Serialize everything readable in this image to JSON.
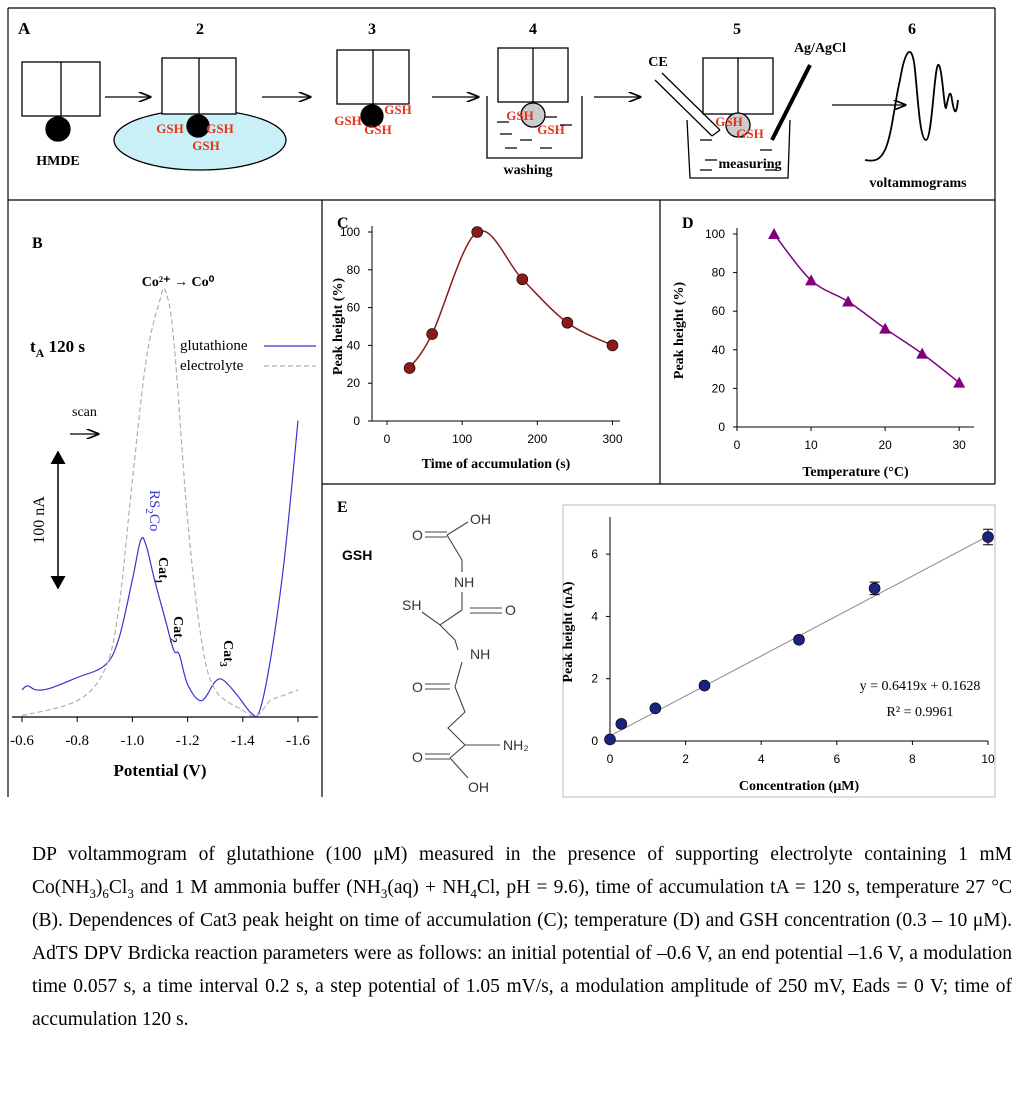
{
  "panel_a": {
    "label": "A",
    "steps": [
      "2",
      "3",
      "4",
      "5",
      "6"
    ],
    "hmde": "HMDE",
    "gsh_labels": [
      "GSH",
      "GSH",
      "GSH",
      "GSH",
      "GSH",
      "GSH",
      "GSH",
      "GSH",
      "GSH",
      "GSH"
    ],
    "washing": "washing",
    "ce": "CE",
    "reference": "Ag/AgCl",
    "measuring": "measuring",
    "voltammograms": "voltammograms"
  },
  "chart_data": [
    {
      "type": "line",
      "panel": "B",
      "xlabel": "Potential (V)",
      "xlim": [
        -0.6,
        -1.6
      ],
      "xticks": [
        -0.6,
        -0.8,
        {
          "value": -1,
          "label": "-1.0"
        },
        -1.2,
        -1.4,
        -1.6
      ],
      "series": [
        {
          "name": "glutathione",
          "color": "#3535d0",
          "dash": false,
          "x": [
            -0.6,
            -0.62,
            -0.65,
            -0.7,
            -0.8,
            -0.9,
            -0.95,
            -1.0,
            -1.03,
            -1.05,
            -1.08,
            -1.12,
            -1.15,
            -1.17,
            -1.2,
            -1.25,
            -1.3,
            -1.33,
            -1.38,
            -1.43,
            -1.46,
            -1.5,
            -1.55,
            -1.6
          ],
          "values": [
            20,
            23,
            20,
            21,
            29,
            38,
            57,
            101,
            130,
            126,
            101,
            71,
            49,
            46,
            24,
            12,
            26,
            27,
            16,
            3,
            4,
            42,
            115,
            218
          ]
        },
        {
          "name": "electrolyte",
          "color": "#b0b0b0",
          "dash": true,
          "x": [
            -0.6,
            -0.8,
            -0.9,
            -0.95,
            -1.0,
            -1.05,
            -1.1,
            -1.12,
            -1.15,
            -1.2,
            -1.25,
            -1.3,
            -1.4,
            -1.45,
            -1.5,
            -1.55,
            -1.6
          ],
          "values": [
            1,
            12,
            35,
            79,
            174,
            263,
            307,
            313,
            277,
            145,
            57,
            20,
            5,
            1,
            12,
            16,
            20
          ]
        }
      ],
      "peak_label": "Co²⁺ → Co⁰",
      "time_label": [
        "t",
        "A",
        " 120 s"
      ],
      "scan_label": "scan",
      "scale_bar": {
        "value": 100,
        "label": "100 nA"
      },
      "rs2co": [
        "RS",
        "2",
        "Co"
      ],
      "cat1": [
        "Cat",
        "1"
      ],
      "cat2": [
        "Cat",
        "2"
      ],
      "cat3": [
        "Cat",
        "3"
      ]
    },
    {
      "type": "line",
      "panel": "C",
      "xlabel": "Time of accumulation (s)",
      "ylabel": "Peak height (%)",
      "xlim": [
        -20,
        310
      ],
      "xticks": [
        0,
        100,
        200,
        300
      ],
      "ylim": [
        0,
        100
      ],
      "yticks": [
        0,
        20,
        40,
        60,
        80,
        100
      ],
      "x": [
        30,
        60,
        120,
        180,
        240,
        300
      ],
      "values": [
        28,
        46,
        100,
        75,
        52,
        40
      ],
      "color": "#8b1a1a",
      "marker": "circle"
    },
    {
      "type": "line",
      "panel": "D",
      "xlabel": "Temperature (°C)",
      "ylabel": "Peak height (%)",
      "xlim": [
        0,
        32
      ],
      "xticks": [
        0,
        10,
        20,
        30
      ],
      "ylim": [
        0,
        100
      ],
      "yticks": [
        0,
        20,
        40,
        60,
        80,
        100
      ],
      "x": [
        5,
        10,
        15,
        20,
        25,
        30
      ],
      "values": [
        100,
        76,
        65,
        51,
        38,
        23
      ],
      "color": "#800080",
      "marker": "triangle"
    },
    {
      "type": "scatter",
      "panel": "E",
      "xlabel": "Concentration (μM)",
      "ylabel": "Peak height (nA)",
      "xlim": [
        0,
        10
      ],
      "xticks": [
        0,
        2,
        4,
        6,
        8,
        10
      ],
      "ylim": [
        0,
        7
      ],
      "yticks": [
        0,
        2,
        4,
        6
      ],
      "x": [
        0,
        0.3,
        1.2,
        2.5,
        5,
        7,
        10
      ],
      "values": [
        0.05,
        0.55,
        1.05,
        1.78,
        3.25,
        4.9,
        6.55
      ],
      "errors": [
        0.05,
        0.05,
        0.08,
        0.08,
        0.1,
        0.2,
        0.25
      ],
      "color": "#1a237e",
      "marker": "circle",
      "trendline": {
        "slope": 0.6419,
        "intercept": 0.1628,
        "label": "y = 0.6419x + 0.1628"
      },
      "r2": {
        "value": 0.9961,
        "label": "R² = 0.9961"
      },
      "structure": {
        "name": "GSH",
        "atoms": [
          "OH",
          "O",
          "NH",
          "SH",
          "O",
          "NH",
          "O",
          "NH₂",
          "O",
          "OH"
        ]
      }
    }
  ],
  "caption": [
    {
      "t": "DP voltammogram of glutathione (100 μM) measured in the presence of supporting electrolyte containing 1 mM Co(NH"
    },
    {
      "sub": "3"
    },
    {
      "t": ")"
    },
    {
      "sub": "6"
    },
    {
      "t": "Cl"
    },
    {
      "sub": "3"
    },
    {
      "t": " and 1 M ammonia buffer (NH"
    },
    {
      "sub": "3"
    },
    {
      "t": "(aq) + NH"
    },
    {
      "sub": "4"
    },
    {
      "t": "Cl, pH = 9.6), time of accumulation tA = 120 s, temperature 27 °C (B). Dependences of Cat3 peak height on time of accumulation (C); temperature (D) and GSH concentration (0.3 – 10 μM). AdTS DPV Brdicka reaction parameters were as follows: an initial potential of –0.6 V, an end potential –1.6 V, a modulation time 0.057 s, a time interval 0.2 s, a step potential of 1.05 mV/s, a modulation amplitude of 250 mV, Eads = 0 V; time of accumulation 120 s."
    }
  ]
}
